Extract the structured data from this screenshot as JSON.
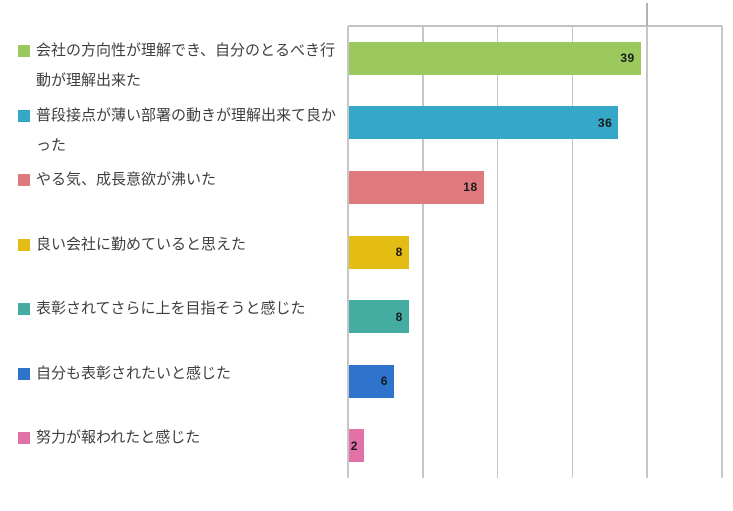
{
  "chart_data": {
    "type": "bar",
    "orientation": "horizontal",
    "title": "",
    "xlabel": "",
    "ylabel": "",
    "categories": [
      "会社の方向性が理解でき、自分のとるべき行動が理解出来た",
      "普段接点が薄い部署の動きが理解出来て良かった",
      "やる気、成長意欲が沸いた",
      "良い会社に勤めていると思えた",
      "表彰されてさらに上を目指そうと感じた",
      "自分も表彰されたいと感じた",
      "努力が報われたと感じた"
    ],
    "values": [
      39,
      36,
      18,
      8,
      8,
      6,
      2
    ],
    "value_labels": [
      "39",
      "36",
      "18",
      "8",
      "8",
      "6",
      "2"
    ],
    "bar_colors": [
      "#9BC95E",
      "#35A8C7",
      "#DE7A7D",
      "#E3BC14",
      "#45ACA2",
      "#2F74CC",
      "#E171A7"
    ],
    "xlim": [
      0,
      50
    ],
    "x_gridline_step": 10,
    "grid": true,
    "axis_tick_labels_visible": false,
    "legend_position": "left",
    "value_label_position": "inside-end"
  },
  "styles": {
    "grid_color": "#C6C6C6",
    "plot_border_color": "#C2C2C2",
    "legend_text_color": "#3F3F3F",
    "value_text_color": "#1A1A1A",
    "background_color": "#FFFFFF"
  }
}
